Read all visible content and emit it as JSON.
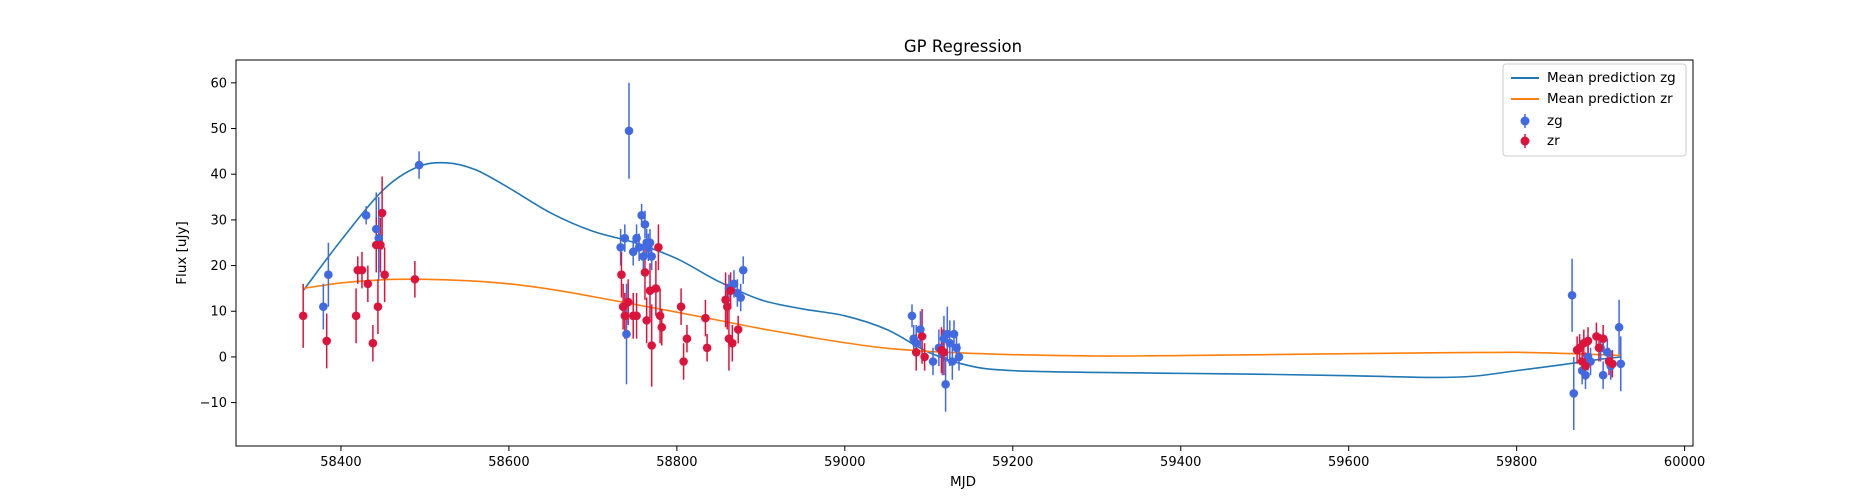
{
  "chart_data": {
    "type": "scatter",
    "title": "GP Regression",
    "xlabel": "MJD",
    "ylabel": "Flux [uJy]",
    "xlim": [
      58275,
      60010
    ],
    "ylim": [
      -19.5,
      65
    ],
    "xticks": [
      58400,
      58600,
      58800,
      59000,
      59200,
      59400,
      59600,
      59800,
      60000
    ],
    "yticks": [
      -10,
      0,
      10,
      20,
      30,
      40,
      50,
      60
    ],
    "grid": false,
    "legend_position": "top-right",
    "colors": {
      "line_zg": "#1f77b4",
      "line_zr": "#ff7f0e",
      "points_zg": "#4169e1",
      "points_zr": "#dc143c"
    },
    "lines": [
      {
        "name": "Mean prediction zg",
        "color": "#1f77b4",
        "x": [
          58355,
          58400,
          58450,
          58490,
          58525,
          58560,
          58600,
          58650,
          58700,
          58750,
          58800,
          58850,
          58900,
          58950,
          59000,
          59050,
          59100,
          59150,
          59200,
          59300,
          59400,
          59500,
          59600,
          59700,
          59750,
          59800,
          59850,
          59900,
          59925
        ],
        "y": [
          14.5,
          25.5,
          36.5,
          41.5,
          42.5,
          41,
          37,
          31.5,
          27.5,
          25,
          21.5,
          16.5,
          12.5,
          10.5,
          9,
          6,
          1,
          -2,
          -3,
          -3.4,
          -3.6,
          -3.8,
          -4.1,
          -4.5,
          -4.2,
          -3,
          -1.8,
          -0.5,
          0
        ]
      },
      {
        "name": "Mean prediction zr",
        "color": "#ff7f0e",
        "x": [
          58355,
          58400,
          58450,
          58500,
          58550,
          58600,
          58650,
          58700,
          58750,
          58800,
          58850,
          58900,
          58950,
          59000,
          59050,
          59100,
          59150,
          59200,
          59300,
          59400,
          59500,
          59600,
          59700,
          59800,
          59850,
          59900,
          59925
        ],
        "y": [
          15,
          16.2,
          16.9,
          17,
          16.7,
          16,
          14.8,
          13.2,
          11.5,
          9.8,
          8,
          6.2,
          4.6,
          3.1,
          1.9,
          1.2,
          0.8,
          0.5,
          0.2,
          0.3,
          0.5,
          0.7,
          0.9,
          1,
          0.8,
          0.5,
          0.3
        ]
      }
    ],
    "series": [
      {
        "name": "zg",
        "color": "#4169e1",
        "points": [
          [
            58379,
            11,
            5
          ],
          [
            58385,
            18,
            7
          ],
          [
            58430,
            31,
            2
          ],
          [
            58442,
            28,
            8
          ],
          [
            58445,
            26,
            9
          ],
          [
            58493,
            42,
            3
          ],
          [
            58733,
            24,
            4
          ],
          [
            58738,
            26,
            3
          ],
          [
            58740,
            5,
            11
          ],
          [
            58743,
            49.5,
            10.5
          ],
          [
            58748,
            23,
            3
          ],
          [
            58752,
            26,
            3
          ],
          [
            58755,
            24,
            3
          ],
          [
            58758,
            31,
            2.5
          ],
          [
            58760,
            22,
            3
          ],
          [
            58762,
            29,
            3
          ],
          [
            58764,
            25,
            3
          ],
          [
            58766,
            24,
            3
          ],
          [
            58768,
            25,
            3
          ],
          [
            58770,
            22,
            3
          ],
          [
            58862,
            15,
            3
          ],
          [
            58868,
            16,
            3
          ],
          [
            58872,
            14,
            3
          ],
          [
            58876,
            13,
            3
          ],
          [
            58879,
            19,
            3
          ],
          [
            59080,
            9,
            2.5
          ],
          [
            59082,
            4,
            3
          ],
          [
            59085,
            3,
            4
          ],
          [
            59090,
            6,
            4
          ],
          [
            59105,
            -1,
            3
          ],
          [
            59112,
            2,
            4
          ],
          [
            59116,
            1,
            5
          ],
          [
            59118,
            4,
            5
          ],
          [
            59120,
            -6,
            6
          ],
          [
            59122,
            5,
            6
          ],
          [
            59125,
            3,
            5
          ],
          [
            59128,
            -1,
            4
          ],
          [
            59130,
            5,
            3
          ],
          [
            59133,
            2,
            3
          ],
          [
            59136,
            0,
            3
          ],
          [
            59866,
            13.5,
            8
          ],
          [
            59868,
            -8,
            8
          ],
          [
            59878,
            -3,
            3
          ],
          [
            59882,
            -4,
            3
          ],
          [
            59885,
            0,
            3
          ],
          [
            59888,
            -1,
            3
          ],
          [
            59900,
            2,
            3
          ],
          [
            59903,
            -4,
            3
          ],
          [
            59908,
            1,
            3
          ],
          [
            59912,
            -2,
            3
          ],
          [
            59922,
            6.5,
            6
          ],
          [
            59924,
            -1.5,
            6
          ]
        ]
      },
      {
        "name": "zr",
        "color": "#dc143c",
        "points": [
          [
            58355,
            9,
            7
          ],
          [
            58383,
            3.5,
            6
          ],
          [
            58418,
            9,
            6
          ],
          [
            58420,
            19,
            3
          ],
          [
            58425,
            19,
            4
          ],
          [
            58432,
            16,
            4
          ],
          [
            58438,
            3,
            4
          ],
          [
            58442,
            24.5,
            6
          ],
          [
            58444,
            11,
            6
          ],
          [
            58447,
            24.5,
            6
          ],
          [
            58449,
            31.5,
            8
          ],
          [
            58452,
            18,
            6
          ],
          [
            58488,
            17,
            4
          ],
          [
            58734,
            18,
            5
          ],
          [
            58736,
            11,
            5
          ],
          [
            58738,
            9,
            5
          ],
          [
            58742,
            12,
            5
          ],
          [
            58748,
            9,
            5
          ],
          [
            58752,
            9,
            5
          ],
          [
            58762,
            18.5,
            6
          ],
          [
            58764,
            8,
            5
          ],
          [
            58768,
            14.5,
            6
          ],
          [
            58770,
            2.5,
            9
          ],
          [
            58775,
            15,
            6
          ],
          [
            58778,
            24,
            5
          ],
          [
            58780,
            9,
            6
          ],
          [
            58782,
            6.5,
            4
          ],
          [
            58805,
            11,
            4
          ],
          [
            58808,
            -1,
            4
          ],
          [
            58812,
            4,
            3
          ],
          [
            58834,
            8.5,
            4
          ],
          [
            58836,
            2,
            3
          ],
          [
            58858,
            12.5,
            6
          ],
          [
            58860,
            11,
            5
          ],
          [
            58862,
            4,
            7
          ],
          [
            58864,
            14.5,
            4
          ],
          [
            58866,
            3,
            4
          ],
          [
            58873,
            6,
            3
          ],
          [
            59085,
            1,
            4
          ],
          [
            59092,
            4.5,
            6
          ],
          [
            59095,
            0,
            3
          ],
          [
            59115,
            1.5,
            5
          ],
          [
            59118,
            1,
            5
          ],
          [
            59872,
            1.5,
            3
          ],
          [
            59875,
            2,
            3
          ],
          [
            59878,
            -1,
            3
          ],
          [
            59880,
            3,
            3
          ],
          [
            59882,
            -2,
            3
          ],
          [
            59885,
            3.5,
            3
          ],
          [
            59895,
            4.5,
            3
          ],
          [
            59898,
            2,
            3
          ],
          [
            59903,
            4,
            3
          ],
          [
            59910,
            -1,
            3
          ],
          [
            59914,
            -1.5,
            3
          ]
        ]
      }
    ]
  },
  "legend": {
    "items": [
      {
        "label": "Mean prediction zg",
        "kind": "line",
        "color": "#1f77b4"
      },
      {
        "label": "Mean prediction zr",
        "kind": "line",
        "color": "#ff7f0e"
      },
      {
        "label": "zg",
        "kind": "errorbar",
        "color": "#4169e1"
      },
      {
        "label": "zr",
        "kind": "errorbar",
        "color": "#dc143c"
      }
    ]
  }
}
